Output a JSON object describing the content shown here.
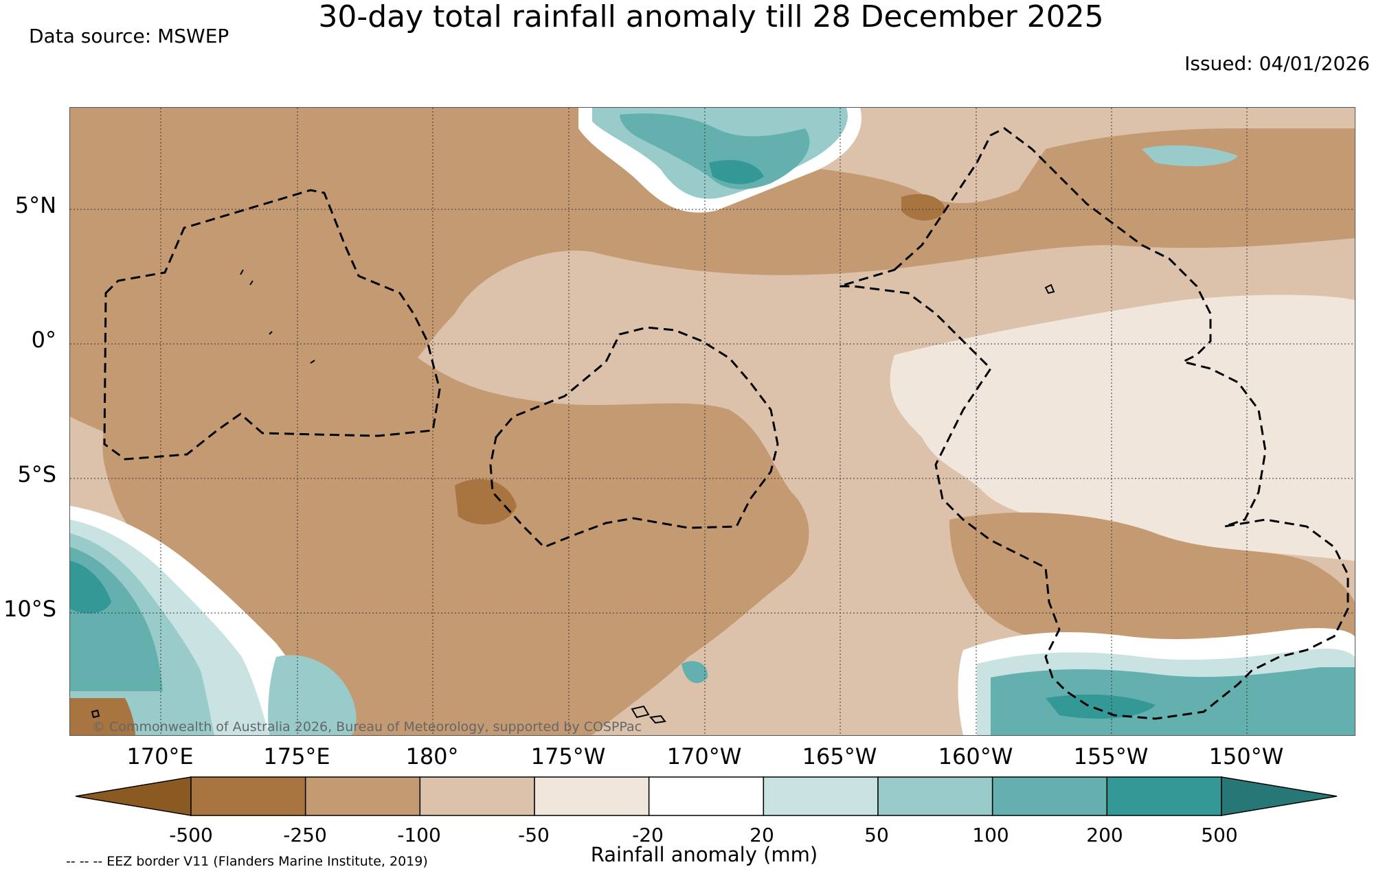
{
  "title": "30-day total rainfall anomaly till 28 December 2025",
  "data_source": "Data source: MSWEP",
  "issued": "Issued: 04/01/2026",
  "copyright": "© Commonwealth of Australia 2026, Bureau of Meteorology, supported by COSPPac",
  "eez_note": "-- -- -- EEZ border V11 (Flanders Marine Institute, 2019)",
  "lat_labels": [
    "5°N",
    "0°",
    "5°S",
    "10°S"
  ],
  "lon_labels": [
    "170°E",
    "175°E",
    "180°",
    "175°W",
    "170°W",
    "165°W",
    "160°W",
    "155°W",
    "150°W"
  ],
  "colorbar": {
    "label": "Rainfall anomaly (mm)",
    "ticks": [
      "-500",
      "-250",
      "-100",
      "-50",
      "-20",
      "20",
      "50",
      "100",
      "200",
      "500"
    ],
    "colors": [
      "#8b5a22",
      "#a87440",
      "#c49a72",
      "#dcc2aa",
      "#f1e6dc",
      "#ffffff",
      "#c9e3e3",
      "#99cbcb",
      "#63b0ae",
      "#349996",
      "#267775"
    ]
  }
}
